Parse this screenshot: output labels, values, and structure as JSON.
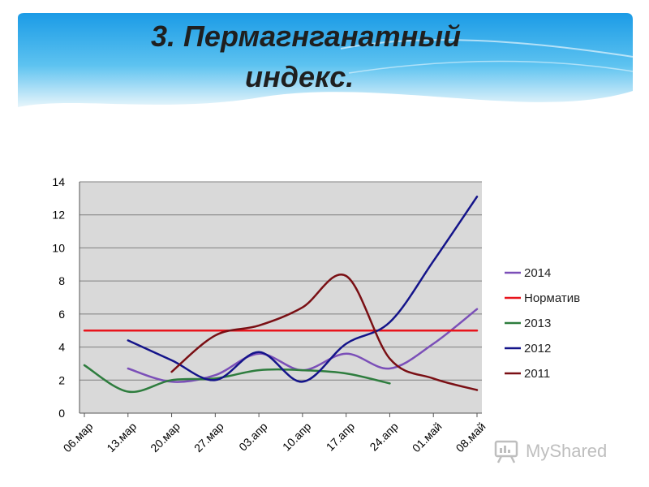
{
  "slide": {
    "title_line_1": "3. Пермагнганатный",
    "title_line_2": "индекс."
  },
  "watermark": {
    "text": "MyShared",
    "icon": "presentation-board-icon"
  },
  "colors": {
    "banner_top": "#1aa0e8",
    "banner_bottom": "#e6f4fb",
    "plot_bg": "#d9d9d9",
    "grid": "#7f7f7f"
  },
  "chart_data": {
    "type": "line",
    "categories": [
      "06.мар",
      "13.мар",
      "20.мар",
      "27.мар",
      "03.апр",
      "10.апр",
      "17.апр",
      "24.апр",
      "01.май",
      "08.май"
    ],
    "ylim": [
      0,
      14
    ],
    "yticks": [
      0,
      2,
      4,
      6,
      8,
      10,
      12,
      14
    ],
    "grid": true,
    "legend_position": "right",
    "series": [
      {
        "name": "2014",
        "color": "#7b4fb8",
        "values": [
          null,
          2.7,
          1.9,
          2.3,
          3.6,
          2.6,
          3.6,
          2.7,
          4.2,
          6.3
        ]
      },
      {
        "name": "Норматив",
        "color": "#e8141c",
        "values": [
          5,
          5,
          5,
          5,
          5,
          5,
          5,
          5,
          5,
          5
        ]
      },
      {
        "name": "2013",
        "color": "#2e7d3e",
        "values": [
          2.9,
          1.3,
          2.0,
          2.1,
          2.6,
          2.6,
          2.4,
          1.8,
          null,
          null
        ]
      },
      {
        "name": "2012",
        "color": "#14148a",
        "values": [
          null,
          4.4,
          3.2,
          2.0,
          3.7,
          1.9,
          4.2,
          5.5,
          9.2,
          13.1
        ]
      },
      {
        "name": "2011",
        "color": "#7a0f14",
        "values": [
          null,
          null,
          2.5,
          4.7,
          5.3,
          6.4,
          8.3,
          3.3,
          2.1,
          1.4
        ]
      }
    ]
  }
}
